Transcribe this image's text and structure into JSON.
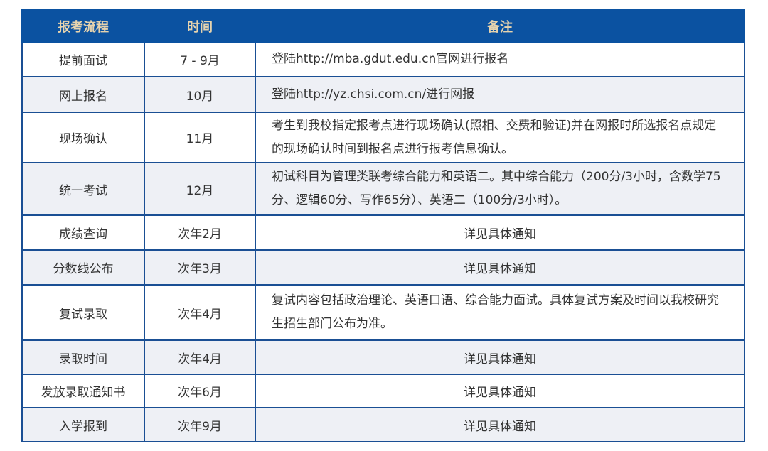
{
  "headers": [
    "报考流程",
    "时间",
    "备注"
  ],
  "rows": [
    {
      "step": "提前面试",
      "time": "7 - 9月",
      "note": "登陆http://mba.gdut.edu.cn官网进行报名",
      "align": "left"
    },
    {
      "step": "网上报名",
      "time": "10月",
      "note": "登陆http://yz.chsi.com.cn/进行网报",
      "align": "left"
    },
    {
      "step": "现场确认",
      "time": "11月",
      "note": "考生到我校指定报考点进行现场确认(照相、交费和验证)并在网报时所选报名点规定的现场确认时间到报名点进行报考信息确认。",
      "align": "left"
    },
    {
      "step": "统一考试",
      "time": "12月",
      "note": "初试科目为管理类联考综合能力和英语二。其中综合能力（200分/3小时，含数学75分、逻辑60分、写作65分）、英语二（100分/3小时）。",
      "align": "left"
    },
    {
      "step": "成绩查询",
      "time": "次年2月",
      "note": "详见具体通知",
      "align": "center"
    },
    {
      "step": "分数线公布",
      "time": "次年3月",
      "note": "详见具体通知",
      "align": "center"
    },
    {
      "step": "复试录取",
      "time": "次年4月",
      "note": "复试内容包括政治理论、英语口语、综合能力面试。具体复试方案及时间以我校研究生招生部门公布为准。",
      "align": "left"
    },
    {
      "step": "录取时间",
      "time": "次年4月",
      "note": "详见具体通知",
      "align": "center"
    },
    {
      "step": "发放录取通知书",
      "time": "次年6月",
      "note": "详见具体通知",
      "align": "center"
    },
    {
      "step": "入学报到",
      "time": "次年9月",
      "note": "详见具体通知",
      "align": "center"
    }
  ],
  "colors": {
    "header_bg": "#0b52a1",
    "header_text": "#e6d3ae",
    "border": "#1a4f94",
    "alt_row": "#eef0f5"
  }
}
